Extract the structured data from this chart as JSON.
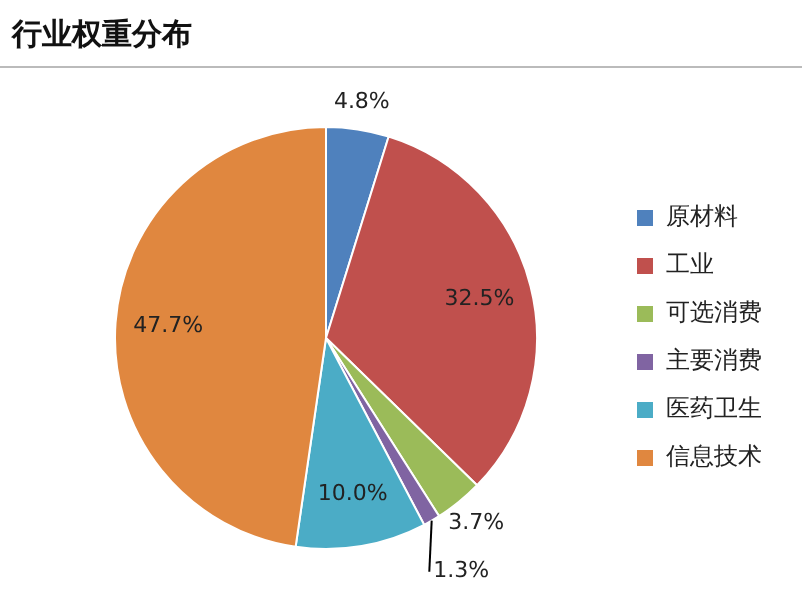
{
  "chart_data": {
    "type": "pie",
    "title": "行业权重分布",
    "categories": [
      "原材料",
      "工业",
      "可选消费",
      "主要消费",
      "医药卫生",
      "信息技术"
    ],
    "values": [
      4.8,
      32.5,
      3.7,
      1.3,
      10.0,
      47.7
    ],
    "value_labels": [
      "4.8%",
      "32.5%",
      "3.7%",
      "1.3%",
      "10.0%",
      "47.7%"
    ],
    "colors": [
      "#4f81bd",
      "#c0504d",
      "#9bbb59",
      "#8064a2",
      "#4bacc6",
      "#e0873f"
    ],
    "legend": "right"
  }
}
